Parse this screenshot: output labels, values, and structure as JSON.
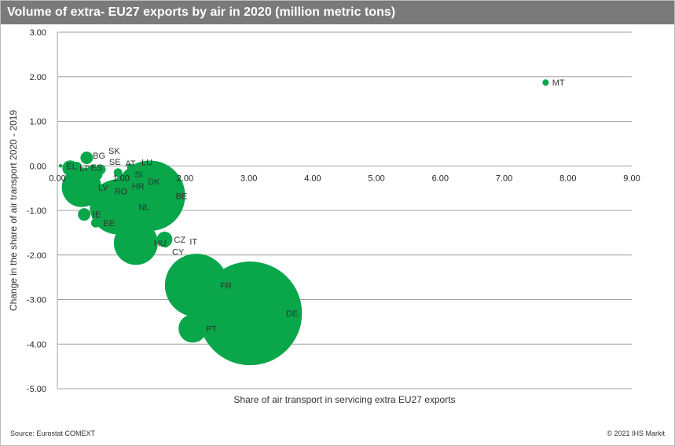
{
  "footer": {
    "source": "Source:  Eurostat COMEXT",
    "copyright": "© 2021 IHS Markit"
  },
  "chart_data": {
    "type": "scatter",
    "subtype": "bubble",
    "title": "Volume of extra- EU27  exports by air in 2020 (million metric tons)",
    "xlabel": "Share of air transport in servicing extra EU27 exports",
    "ylabel": "Change in the share of air transport 2020 - 2019",
    "xlim": [
      0,
      9
    ],
    "ylim": [
      -5,
      3
    ],
    "xticks": [
      "0.00",
      "1.00",
      "2.00",
      "3.00",
      "4.00",
      "5.00",
      "6.00",
      "7.00",
      "8.00",
      "9.00"
    ],
    "yticks": [
      "3.00",
      "2.00",
      "1.00",
      "0.00",
      "-1.00",
      "-2.00",
      "-3.00",
      "-4.00",
      "-5.00"
    ],
    "grid": "horizontal",
    "color": "#0aa64a",
    "points": [
      {
        "label": "DE",
        "x": 3.02,
        "y": -3.31,
        "size": 0.89
      },
      {
        "label": "BE",
        "x": 1.45,
        "y": -0.67,
        "size": 0.41
      },
      {
        "label": "FR",
        "x": 2.18,
        "y": -2.68,
        "size": 0.33
      },
      {
        "label": "NL",
        "x": 0.94,
        "y": -0.92,
        "size": 0.25
      },
      {
        "label": "HU",
        "x": 1.23,
        "y": -1.73,
        "size": 0.16
      },
      {
        "label": "LV",
        "x": 0.38,
        "y": -0.48,
        "size": 0.13
      },
      {
        "label": "PT",
        "x": 2.12,
        "y": -3.65,
        "size": 0.066
      },
      {
        "label": "LT",
        "x": 0.2,
        "y": -0.05,
        "size": 0.02
      },
      {
        "label": "CZ",
        "x": 1.68,
        "y": -1.65,
        "size": 0.02
      },
      {
        "label": "BG",
        "x": 0.46,
        "y": 0.18,
        "size": 0.013
      },
      {
        "label": "IE",
        "x": 0.42,
        "y": -1.09,
        "size": 0.013
      },
      {
        "label": "EE",
        "x": 0.6,
        "y": -1.28,
        "size": 0.007
      },
      {
        "label": "ES",
        "x": 0.3,
        "y": -0.03,
        "size": 0.01
      },
      {
        "label": "SE",
        "x": 0.55,
        "y": -0.1,
        "size": 0.01
      },
      {
        "label": "SK",
        "x": 0.68,
        "y": -0.08,
        "size": 0.008
      },
      {
        "label": "RO",
        "x": 0.62,
        "y": -0.2,
        "size": 0.01
      },
      {
        "label": "AT",
        "x": 0.95,
        "y": -0.15,
        "size": 0.006
      },
      {
        "label": "DK",
        "x": 1.0,
        "y": -0.35,
        "size": 0.01
      },
      {
        "label": "SI",
        "x": 0.9,
        "y": -0.4,
        "size": 0.006
      },
      {
        "label": "HR",
        "x": 0.86,
        "y": -0.45,
        "size": 0.005
      },
      {
        "label": "LU",
        "x": 1.14,
        "y": -0.02,
        "size": 0.0033
      },
      {
        "label": "IT",
        "x": 1.72,
        "y": -1.7,
        "size": 0.004
      },
      {
        "label": "CY",
        "x": 1.7,
        "y": -1.78,
        "size": 0.002
      },
      {
        "label": "EL",
        "x": 0.05,
        "y": 0.0,
        "size": 0.001
      },
      {
        "label": "MT",
        "x": 7.65,
        "y": 1.87,
        "size": 0.0033
      }
    ]
  }
}
